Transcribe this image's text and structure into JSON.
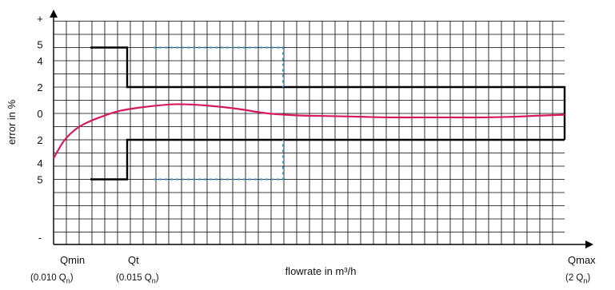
{
  "chart_data": {
    "type": "line",
    "title": "",
    "xlabel": "flowrate in m³/h",
    "ylabel": "error in %",
    "y_tick_labels": [
      "+",
      "5",
      "4",
      "2",
      "0",
      "2",
      "4",
      "5",
      "-"
    ],
    "x_markers": [
      {
        "name": "Qmin",
        "note": "(0.010 Q",
        "unit": "n",
        "close": ")"
      },
      {
        "name": "Qt",
        "note": "(0.015 Q",
        "unit": "n",
        "close": ")"
      },
      {
        "name": "Qmax",
        "note": "(2 Q",
        "unit": "n",
        "close": ")"
      }
    ],
    "tolerance_limits": {
      "below_qt": 5,
      "above_qt": 2,
      "reference_dotted": 5
    },
    "series": [
      {
        "color": "#d6195e",
        "x": [
          0.0,
          0.02,
          0.04,
          0.06,
          0.09,
          0.13,
          0.18,
          0.24,
          0.3,
          0.36,
          0.42,
          0.48,
          0.54,
          0.6,
          0.66,
          0.72,
          0.78,
          0.84,
          0.9,
          0.96,
          1.0
        ],
        "values": [
          -3.4,
          -2.1,
          -1.3,
          -0.8,
          -0.3,
          0.2,
          0.5,
          0.7,
          0.6,
          0.35,
          0.0,
          -0.15,
          -0.2,
          -0.25,
          -0.3,
          -0.3,
          -0.3,
          -0.3,
          -0.25,
          -0.15,
          -0.1
        ]
      }
    ],
    "grid": true,
    "colors": {
      "envelope": "#000000",
      "dotted": "#2d8fd0",
      "curve": "#d6195e",
      "grid": "#000000"
    }
  }
}
